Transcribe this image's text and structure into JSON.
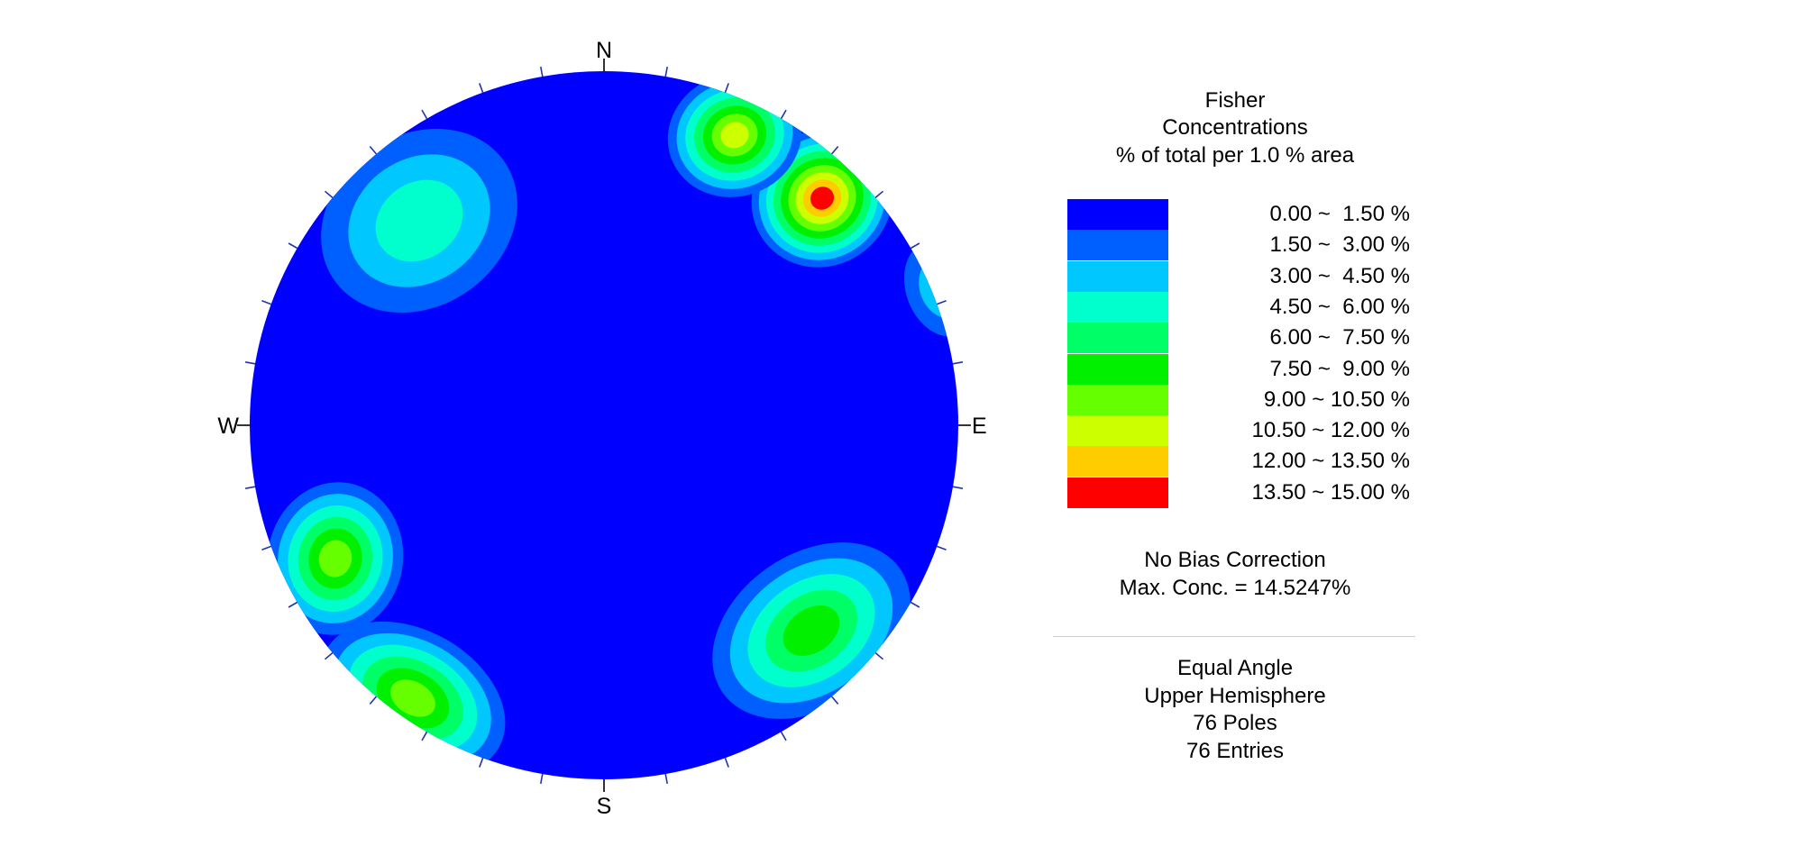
{
  "compass": {
    "n": "N",
    "e": "E",
    "s": "S",
    "w": "W"
  },
  "legend": {
    "title_lines": [
      "Fisher",
      "Concentrations",
      "% of total per 1.0 % area"
    ],
    "bins": [
      {
        "range": "0.00 ~  1.50 %",
        "color": "#0000ff"
      },
      {
        "range": "1.50 ~  3.00 %",
        "color": "#0060ff"
      },
      {
        "range": "3.00 ~  4.50 %",
        "color": "#00c8ff"
      },
      {
        "range": "4.50 ~  6.00 %",
        "color": "#00ffcc"
      },
      {
        "range": "6.00 ~  7.50 %",
        "color": "#00ff66"
      },
      {
        "range": "7.50 ~  9.00 %",
        "color": "#00f000"
      },
      {
        "range": "9.00 ~ 10.50 %",
        "color": "#66ff00"
      },
      {
        "range": "10.50 ~ 12.00 %",
        "color": "#ccff00"
      },
      {
        "range": "12.00 ~ 13.50 %",
        "color": "#ffcc00"
      },
      {
        "range": "13.50 ~ 15.00 %",
        "color": "#ff0000"
      }
    ]
  },
  "info": {
    "bias": "No Bias Correction",
    "max_conc": "Max. Conc. = 14.5247%",
    "projection": "Equal Angle",
    "hemisphere": "Upper Hemisphere",
    "poles": "76 Poles",
    "entries": "76 Entries"
  },
  "chart_data": {
    "type": "heatmap",
    "title": "",
    "projection": "Equal Angle",
    "hemisphere": "Upper Hemisphere",
    "poles": 76,
    "entries": 76,
    "max_concentration_percent": 14.5247,
    "legend_placement": "right",
    "tick_interval_degrees": 10,
    "contour_levels_percent": [
      0,
      1.5,
      3,
      4.5,
      6,
      7.5,
      9,
      10.5,
      12,
      13.5,
      15
    ],
    "clusters": [
      {
        "location": "north-east",
        "peak_bin": "13.50 ~ 15.00 %",
        "peak_color": "#ff0000"
      },
      {
        "location": "north-north-east",
        "peak_bin": "10.50 ~ 12.00 %",
        "peak_color": "#ccff00"
      },
      {
        "location": "north-west",
        "peak_bin": "4.50 ~ 6.00 %",
        "peak_color": "#00ffcc"
      },
      {
        "location": "west-south-west",
        "peak_bin": "9.00 ~ 10.50 %",
        "peak_color": "#66ff00"
      },
      {
        "location": "south-west",
        "peak_bin": "9.00 ~ 10.50 %",
        "peak_color": "#66ff00"
      },
      {
        "location": "south-east",
        "peak_bin": "7.50 ~ 9.00 %",
        "peak_color": "#00f000"
      },
      {
        "location": "east-north-east rim",
        "peak_bin": "3.00 ~ 4.50 %",
        "peak_color": "#00c8ff"
      }
    ]
  }
}
